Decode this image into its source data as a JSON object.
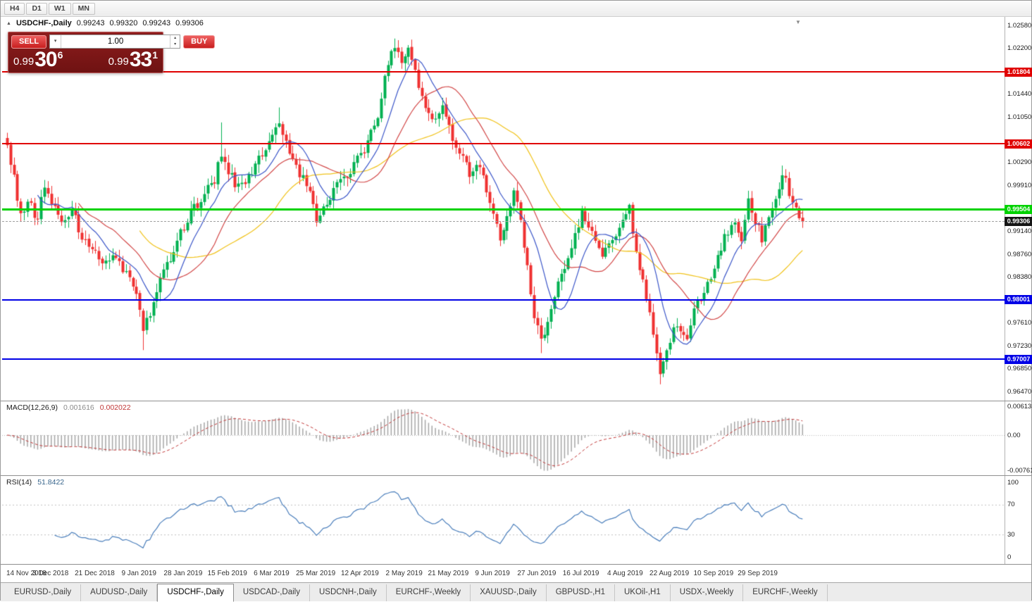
{
  "window": {
    "timeframes": [
      "H4",
      "D1",
      "W1",
      "MN"
    ]
  },
  "icons": {
    "expand": "▲",
    "dropdown": "▾",
    "spin_up": "▴",
    "spin_down": "▾",
    "shift_marker": "▼"
  },
  "chart": {
    "title": {
      "symbol": "USDCHF-,Daily",
      "open": "0.99243",
      "high": "0.99320",
      "low": "0.99243",
      "close": "0.99306"
    },
    "one_click": {
      "sell_label": "SELL",
      "buy_label": "BUY",
      "volume": "1.00",
      "sell_price": {
        "main": "0.99",
        "pips": "30",
        "point": "6"
      },
      "buy_price": {
        "main": "0.99",
        "pips": "33",
        "point": "1"
      }
    }
  },
  "price_axis": {
    "ticks": [
      "1.02580",
      "1.02200",
      "1.01440",
      "1.01050",
      "1.00290",
      "0.99910",
      "0.99140",
      "0.98760",
      "0.98380",
      "0.97610",
      "0.97230",
      "0.96850",
      "0.96470"
    ],
    "current": {
      "label": "0.99306",
      "value": 0.99306,
      "color": "#151515"
    }
  },
  "levels": [
    {
      "label": "1.01804",
      "color": "#e00000",
      "thickness": 2,
      "name": "resistance-line-upper"
    },
    {
      "label": "1.00602",
      "color": "#e00000",
      "thickness": 2,
      "name": "resistance-line-lower"
    },
    {
      "label": "0.99504",
      "color": "#00d200",
      "thickness": 3,
      "name": "pivot-line-green"
    },
    {
      "label": "0.98001",
      "color": "#0000e6",
      "thickness": 2,
      "name": "support-line-upper"
    },
    {
      "label": "0.97007",
      "color": "#0000e6",
      "thickness": 2,
      "name": "support-line-lower"
    }
  ],
  "macd": {
    "name": "MACD(12,26,9)",
    "main_value": "0.001616",
    "signal_value": "0.002022",
    "axis": [
      "0.00613",
      "0.00",
      "-0.00761"
    ]
  },
  "rsi": {
    "name": "RSI(14)",
    "value": "51.8422",
    "axis": [
      "100",
      "70",
      "30",
      "0"
    ]
  },
  "date_axis": [
    "14 Nov 2018",
    "3 Dec 2018",
    "21 Dec 2018",
    "9 Jan 2019",
    "28 Jan 2019",
    "15 Feb 2019",
    "6 Mar 2019",
    "25 Mar 2019",
    "12 Apr 2019",
    "2 May 2019",
    "21 May 2019",
    "9 Jun 2019",
    "27 Jun 2019",
    "16 Jul 2019",
    "4 Aug 2019",
    "22 Aug 2019",
    "10 Sep 2019",
    "29 Sep 2019"
  ],
  "tabs": {
    "items": [
      "EURUSD-,Daily",
      "AUDUSD-,Daily",
      "USDCHF-,Daily",
      "USDCAD-,Daily",
      "USDCNH-,Daily",
      "EURCHF-,Weekly",
      "XAUUSD-,Daily",
      "GBPUSD-,H1",
      "UKOil-,H1",
      "USDX-,Weekly",
      "EURCHF-,Weekly"
    ],
    "active_index": 2
  },
  "chart_data": {
    "type": "candlestick",
    "symbol": "USDCHF",
    "period": "Daily",
    "ohlc_display": {
      "open": 0.99243,
      "high": 0.9932,
      "low": 0.99243,
      "close": 0.99306
    },
    "bar_count": 235,
    "last_close": 0.99306,
    "y_range": [
      0.9647,
      1.0258
    ],
    "x_range": [
      "14 Nov 2018",
      "10 Oct 2019"
    ],
    "key_levels": [
      1.01804,
      1.00602,
      0.99504,
      0.98001,
      0.97007
    ],
    "candle_colors": {
      "up": "#00b050",
      "down": "#ef3030"
    },
    "anchors": [
      [
        0,
        1.0058
      ],
      [
        2,
        1.0008
      ],
      [
        4,
        0.9938
      ],
      [
        6,
        0.9962
      ],
      [
        9,
        0.9935
      ],
      [
        11,
        0.9992
      ],
      [
        13,
        0.9968
      ],
      [
        16,
        0.9928
      ],
      [
        19,
        0.9948
      ],
      [
        22,
        0.9905
      ],
      [
        26,
        0.9882
      ],
      [
        29,
        0.9858
      ],
      [
        32,
        0.9872
      ],
      [
        35,
        0.9845
      ],
      [
        38,
        0.9802
      ],
      [
        40,
        0.9748
      ],
      [
        42,
        0.9775
      ],
      [
        45,
        0.9832
      ],
      [
        48,
        0.9872
      ],
      [
        52,
        0.9925
      ],
      [
        55,
        0.9952
      ],
      [
        58,
        0.9978
      ],
      [
        61,
        1.0002
      ],
      [
        63,
        1.0042
      ],
      [
        65,
        1.0012
      ],
      [
        68,
        0.9986
      ],
      [
        71,
        1.0006
      ],
      [
        74,
        1.0032
      ],
      [
        77,
        1.0062
      ],
      [
        80,
        1.0092
      ],
      [
        82,
        1.0062
      ],
      [
        85,
        1.0022
      ],
      [
        88,
        0.9992
      ],
      [
        91,
        0.9938
      ],
      [
        94,
        0.9962
      ],
      [
        97,
        0.9992
      ],
      [
        100,
        1.0008
      ],
      [
        103,
        1.0032
      ],
      [
        106,
        1.0062
      ],
      [
        109,
        1.0112
      ],
      [
        112,
        1.0192
      ],
      [
        114,
        1.0225
      ],
      [
        116,
        1.0196
      ],
      [
        118,
        1.0214
      ],
      [
        120,
        1.0176
      ],
      [
        123,
        1.0112
      ],
      [
        126,
        1.0096
      ],
      [
        128,
        1.0126
      ],
      [
        130,
        1.0086
      ],
      [
        133,
        1.0046
      ],
      [
        136,
        1.0012
      ],
      [
        139,
        1.0026
      ],
      [
        141,
        0.9976
      ],
      [
        143,
        0.9936
      ],
      [
        145,
        0.9902
      ],
      [
        147,
        0.9938
      ],
      [
        149,
        0.9986
      ],
      [
        151,
        0.9936
      ],
      [
        153,
        0.9852
      ],
      [
        155,
        0.9772
      ],
      [
        157,
        0.9728
      ],
      [
        159,
        0.9762
      ],
      [
        161,
        0.9812
      ],
      [
        164,
        0.9852
      ],
      [
        167,
        0.9912
      ],
      [
        169,
        0.9946
      ],
      [
        172,
        0.9906
      ],
      [
        175,
        0.9872
      ],
      [
        178,
        0.9892
      ],
      [
        181,
        0.9936
      ],
      [
        183,
        0.9952
      ],
      [
        185,
        0.9872
      ],
      [
        188,
        0.9802
      ],
      [
        190,
        0.9748
      ],
      [
        192,
        0.9682
      ],
      [
        194,
        0.9722
      ],
      [
        197,
        0.9762
      ],
      [
        200,
        0.9738
      ],
      [
        202,
        0.9782
      ],
      [
        205,
        0.9812
      ],
      [
        208,
        0.9848
      ],
      [
        211,
        0.9902
      ],
      [
        214,
        0.9926
      ],
      [
        216,
        0.9892
      ],
      [
        218,
        0.9976
      ],
      [
        220,
        0.9932
      ],
      [
        222,
        0.9902
      ],
      [
        224,
        0.9936
      ],
      [
        226,
        0.9962
      ],
      [
        228,
        1.0002
      ],
      [
        229,
        0.9996
      ],
      [
        231,
        0.9966
      ],
      [
        233,
        0.9938
      ],
      [
        234,
        0.9931
      ]
    ],
    "spikes": [
      {
        "i": 40,
        "low": 0.9716
      },
      {
        "i": 63,
        "high": 1.0096
      },
      {
        "i": 80,
        "high": 1.0121
      },
      {
        "i": 114,
        "high": 1.0236
      },
      {
        "i": 157,
        "low": 0.9711
      },
      {
        "i": 192,
        "low": 0.9659
      },
      {
        "i": 228,
        "high": 1.0024
      }
    ],
    "moving_averages": [
      {
        "period": 40,
        "color": "#f0c21a",
        "name": "ma-slow"
      },
      {
        "period": 22,
        "color": "#d24747",
        "name": "ma-mid"
      },
      {
        "period": 10,
        "color": "#3a55c8",
        "name": "ma-fast"
      }
    ],
    "indicators": {
      "macd": {
        "fast": 12,
        "slow": 26,
        "signal": 9,
        "main": 0.001616,
        "signal_value": 0.002022,
        "hist_color": "#a6a6a6",
        "signal_color": "#c03636"
      },
      "rsi": {
        "period": 14,
        "value": 51.8422,
        "color": "#4a7ebb",
        "levels": [
          70,
          30
        ]
      }
    }
  }
}
